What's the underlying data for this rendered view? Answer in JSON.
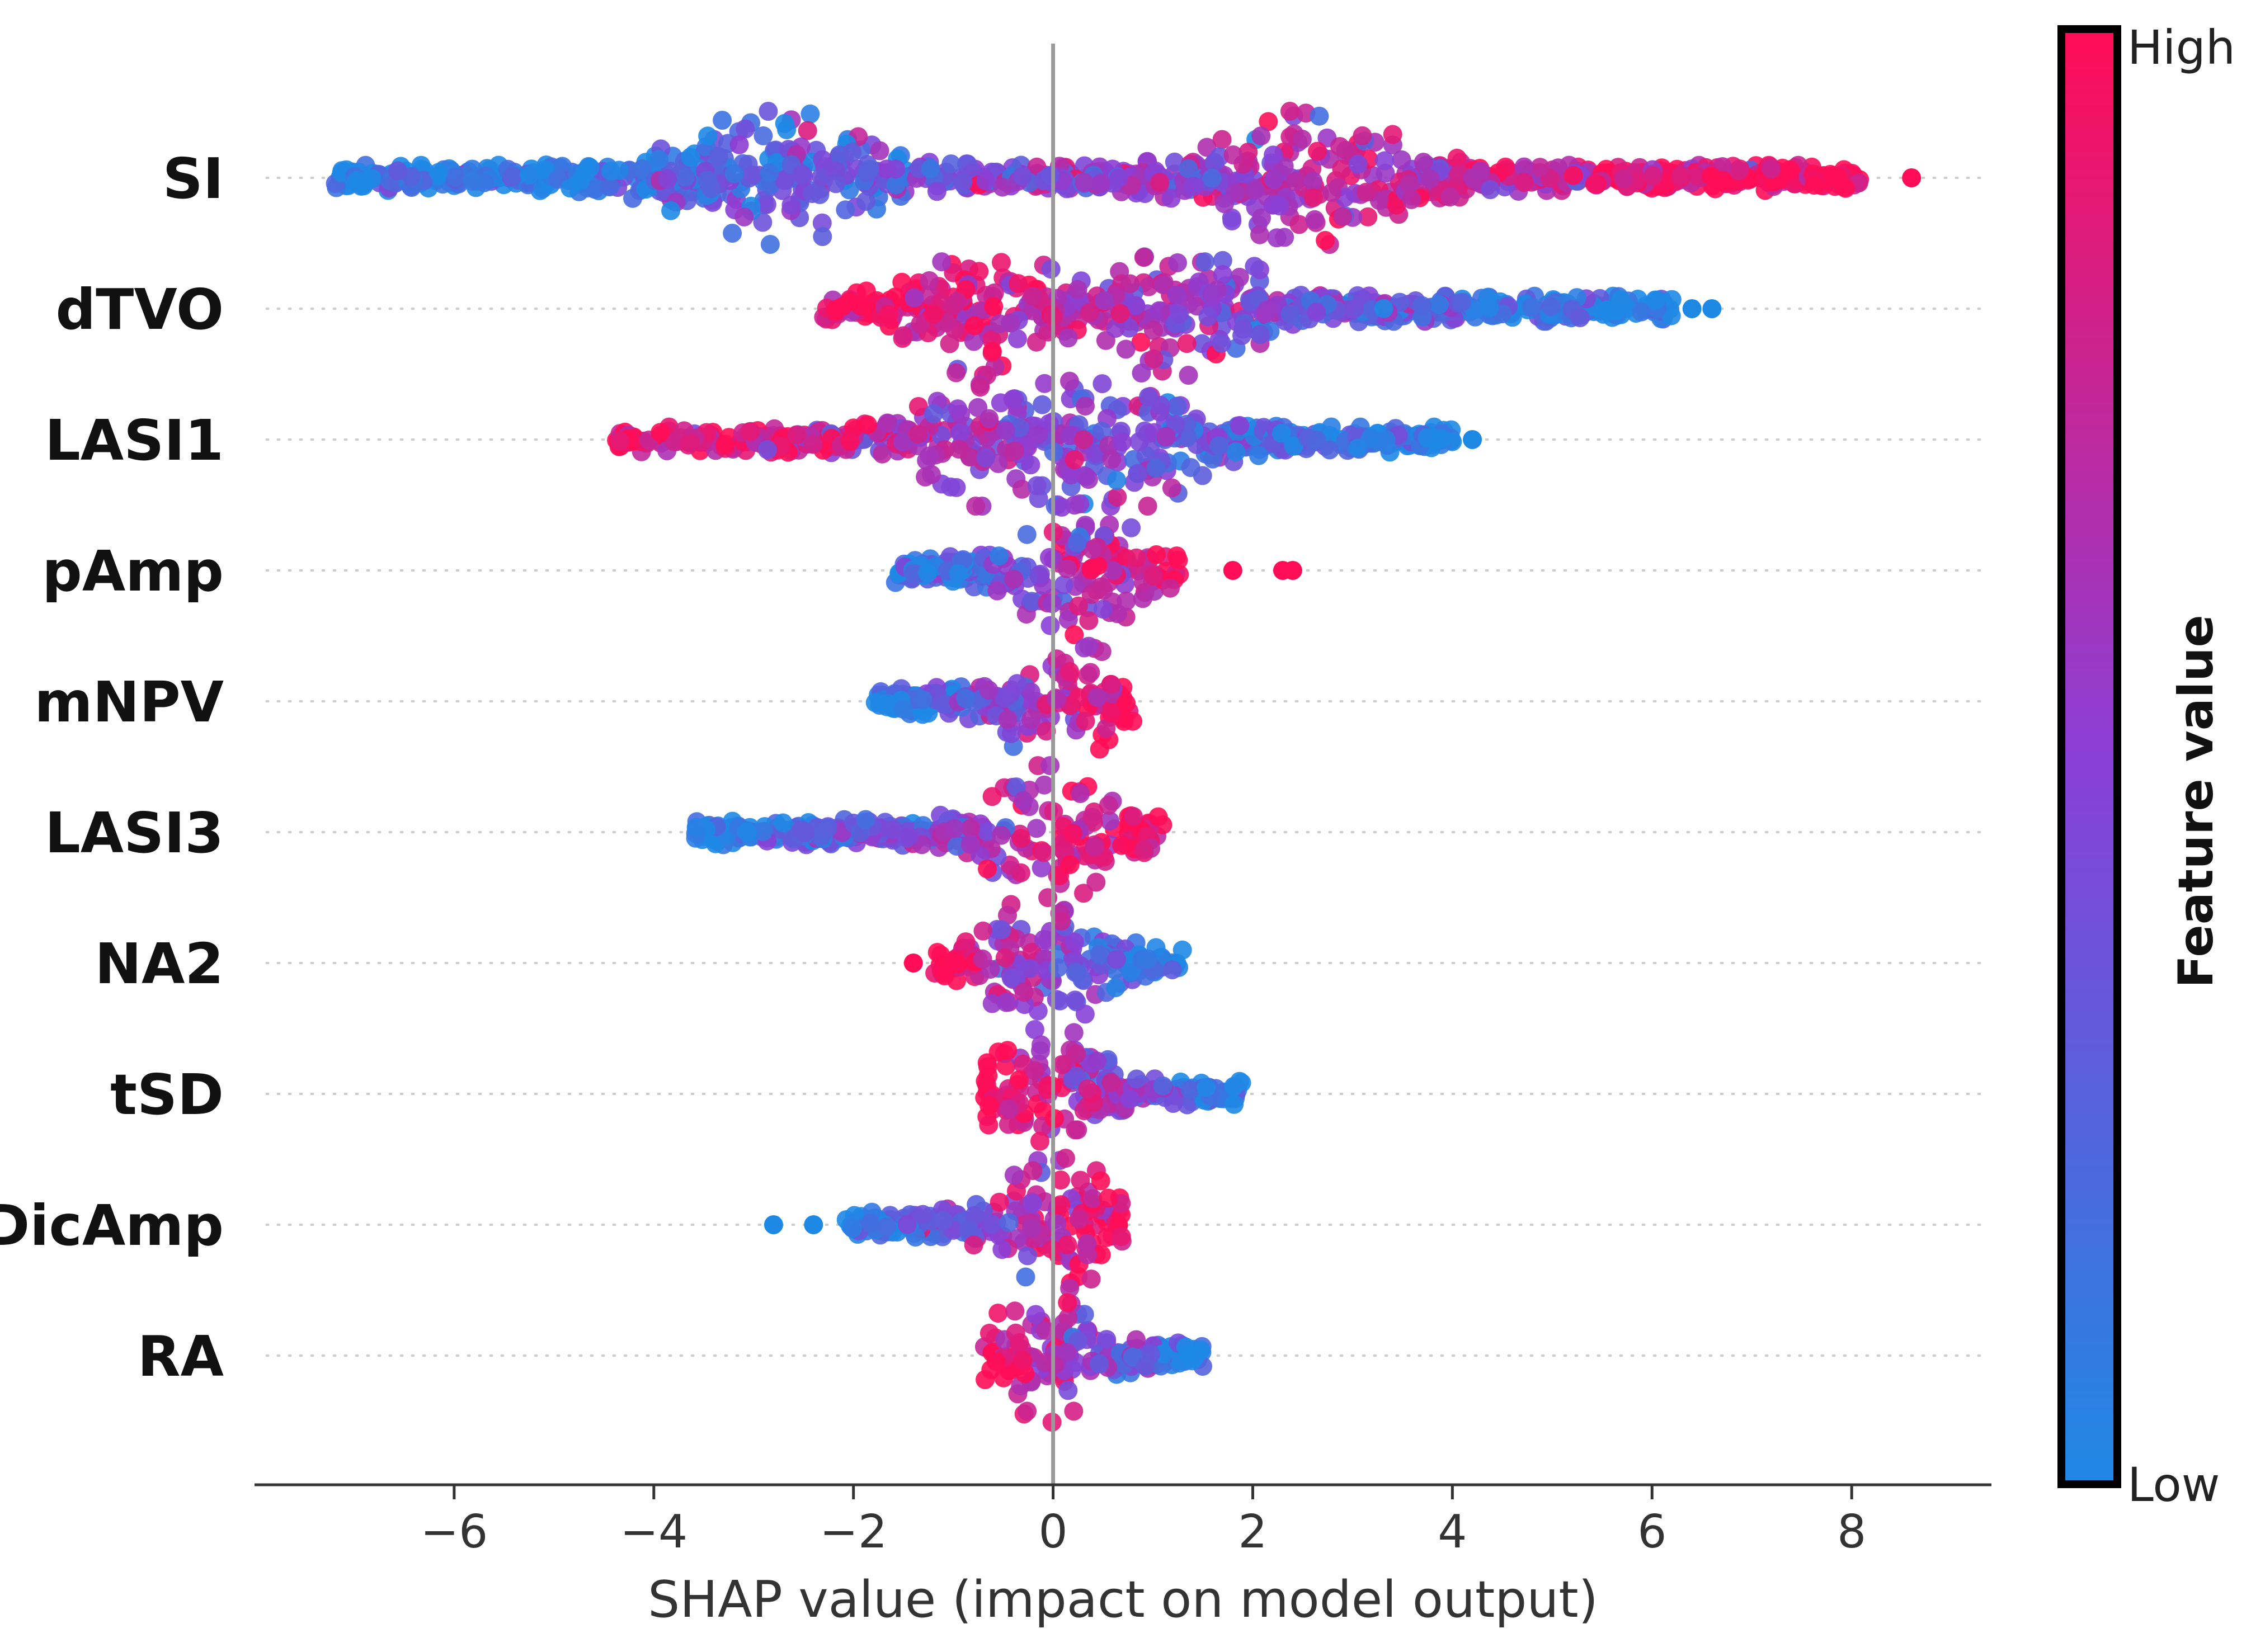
{
  "chart_data": {
    "type": "scatter",
    "subtype": "shap-beeswarm-summary",
    "title": "",
    "xlabel": "SHAP value (impact on model output)",
    "ylabel": "",
    "xlim": [
      -8.0,
      9.4
    ],
    "x_ticks": [
      -6,
      -4,
      -2,
      0,
      2,
      4,
      6,
      8
    ],
    "x_tick_labels": [
      "−6",
      "−4",
      "−2",
      "0",
      "2",
      "4",
      "6",
      "8"
    ],
    "zero_line": 0,
    "grid": false,
    "features": [
      {
        "name": "SI",
        "min": -7.2,
        "max": 8.1,
        "outliers": [
          8.6
        ],
        "low_value_side": "negative",
        "peaks": [
          -2.8,
          2.6
        ],
        "spread": 1.0
      },
      {
        "name": "dTVO",
        "min": -2.3,
        "max": 6.2,
        "outliers": [
          6.4,
          6.6
        ],
        "low_value_side": "positive",
        "peaks": [
          -0.7,
          1.4
        ],
        "spread": 0.75
      },
      {
        "name": "LASI1",
        "min": -4.4,
        "max": 4.0,
        "outliers": [
          4.2
        ],
        "low_value_side": "positive",
        "peaks": [
          -0.6,
          0.8
        ],
        "spread": 0.75
      },
      {
        "name": "pAmp",
        "min": -1.6,
        "max": 1.3,
        "outliers": [
          1.8,
          2.3,
          2.4
        ],
        "low_value_side": "negative",
        "peaks": [
          0.25
        ],
        "spread": 0.65
      },
      {
        "name": "mNPV",
        "min": -1.8,
        "max": 0.8,
        "outliers": [],
        "low_value_side": "negative",
        "peaks": [
          0.1
        ],
        "spread": 0.65
      },
      {
        "name": "LASI3",
        "min": -3.6,
        "max": 1.1,
        "outliers": [],
        "low_value_side": "negative",
        "peaks": [
          0.0
        ],
        "spread": 0.7
      },
      {
        "name": "NA2",
        "min": -1.2,
        "max": 1.3,
        "outliers": [
          -1.4
        ],
        "low_value_side": "positive",
        "peaks": [
          -0.1
        ],
        "spread": 0.65
      },
      {
        "name": "tSD",
        "min": -0.7,
        "max": 1.9,
        "outliers": [],
        "low_value_side": "positive",
        "peaks": [
          -0.05
        ],
        "spread": 0.6
      },
      {
        "name": "DicAmp",
        "min": -2.1,
        "max": 0.7,
        "outliers": [
          -2.8,
          -2.4
        ],
        "low_value_side": "negative",
        "peaks": [
          0.05
        ],
        "spread": 0.65
      },
      {
        "name": "RA",
        "min": -0.7,
        "max": 1.5,
        "outliers": [],
        "low_value_side": "positive",
        "peaks": [
          -0.1
        ],
        "spread": 0.55
      }
    ],
    "colorbar": {
      "title": "Feature value",
      "high_label": "High",
      "low_label": "Low",
      "high_color": "#ff0d57",
      "mid_color": "#8a3fd6",
      "low_color": "#1e88e5"
    }
  }
}
